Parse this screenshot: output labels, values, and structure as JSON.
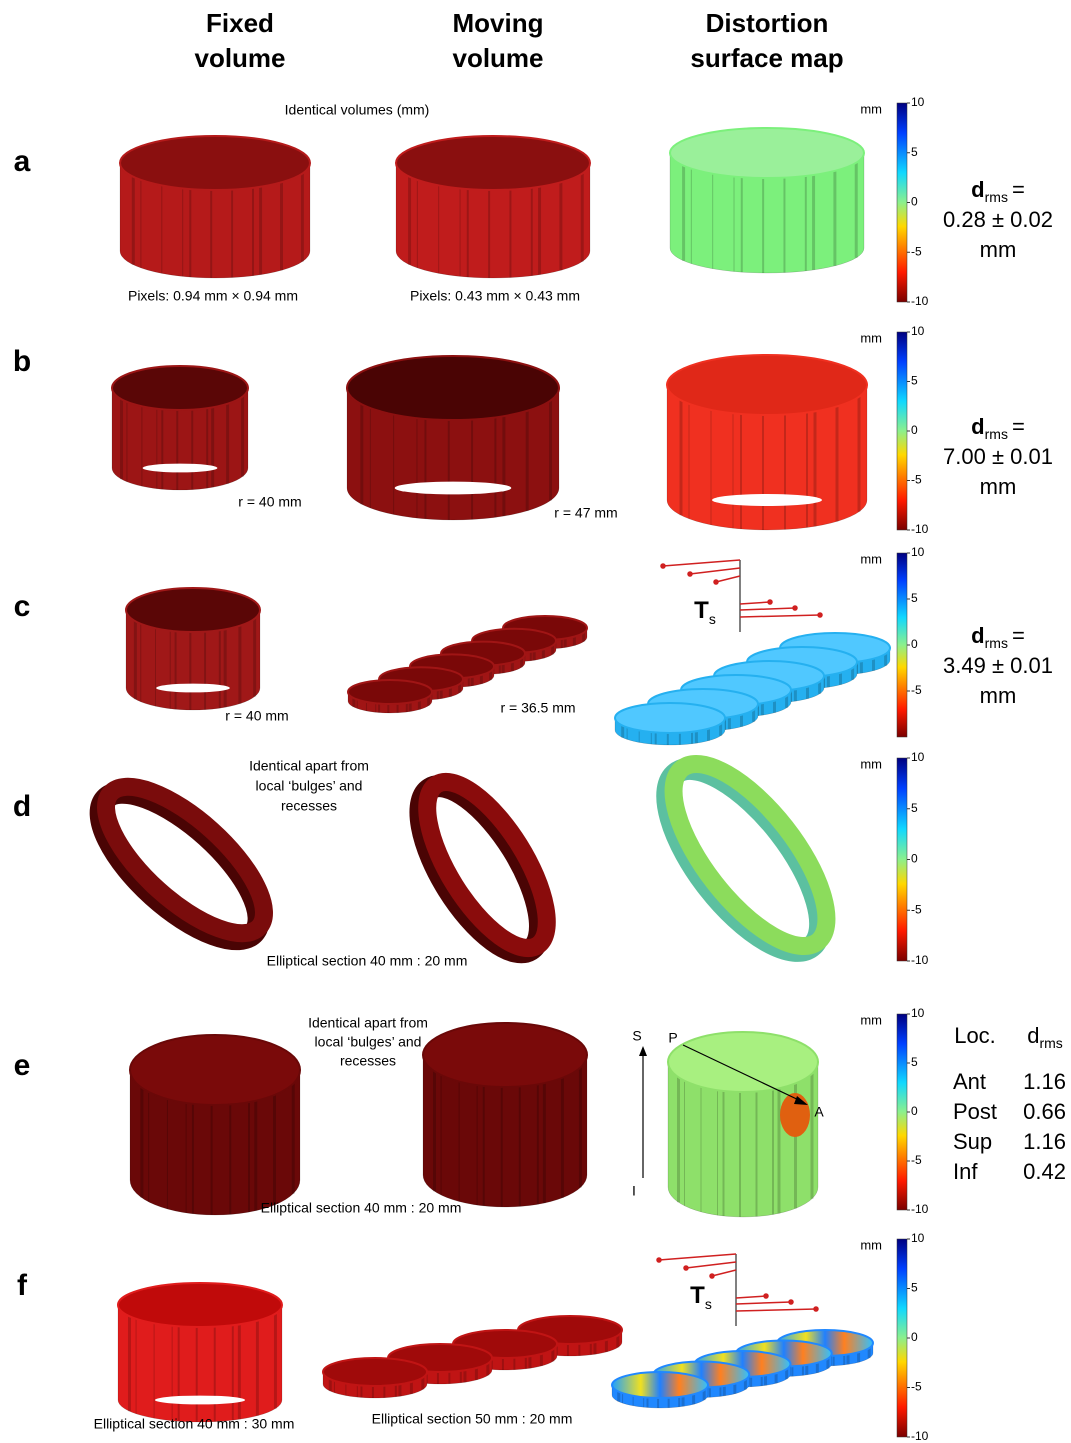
{
  "headers": [
    [
      "Fixed",
      "volume"
    ],
    [
      "Moving",
      "volume"
    ],
    [
      "Distortion",
      "surface map"
    ]
  ],
  "rows": [
    {
      "label": "a",
      "captions": [
        "Identical volumes (mm)",
        "Pixels: 0.94 mm × 0.94 mm",
        "Pixels: 0.43 mm × 0.43 mm"
      ],
      "colorbar": {
        "unit": "mm",
        "clim": [
          -10,
          10
        ],
        "ticks": [
          10,
          5,
          0,
          -5,
          -10
        ]
      },
      "drms": {
        "symbol": "d",
        "sub": "rms",
        "eq": "=",
        "value": "0.28 ± 0.02",
        "unit": "mm"
      }
    },
    {
      "label": "b",
      "captions": [
        "r = 40 mm",
        "r = 47 mm"
      ],
      "colorbar": {
        "unit": "mm",
        "clim": [
          -10,
          10
        ],
        "ticks": [
          10,
          5,
          0,
          -5,
          -10
        ]
      },
      "drms": {
        "symbol": "d",
        "sub": "rms",
        "eq": "=",
        "value": "7.00 ± 0.01",
        "unit": "mm"
      }
    },
    {
      "label": "c",
      "captions": [
        "r = 40 mm",
        "r = 36.5 mm"
      ],
      "ts": {
        "symbol": "T",
        "sub": "s"
      },
      "colorbar": {
        "unit": "mm",
        "clim": [
          -10,
          10
        ],
        "ticks": [
          10,
          5,
          0,
          -5
        ]
      },
      "drms": {
        "symbol": "d",
        "sub": "rms",
        "eq": "=",
        "value": "3.49 ± 0.01",
        "unit": "mm"
      }
    },
    {
      "label": "d",
      "captions": [
        "Identical apart from",
        "local ‘bulges’ and",
        "recesses",
        "Elliptical section 40 mm : 20 mm"
      ],
      "colorbar": {
        "unit": "mm",
        "clim": [
          -10,
          10
        ],
        "ticks": [
          10,
          5,
          0,
          -5,
          -10
        ]
      }
    },
    {
      "label": "e",
      "captions": [
        "Identical apart from",
        "local ‘bulges’ and",
        "recesses",
        "Elliptical section 40 mm : 20 mm"
      ],
      "axis_labels": [
        "S",
        "P",
        "I",
        "A"
      ],
      "colorbar": {
        "unit": "mm",
        "clim": [
          -10,
          10
        ],
        "ticks": [
          10,
          5,
          0,
          -5,
          -10
        ]
      },
      "table": {
        "header": [
          "Loc.",
          {
            "symbol": "d",
            "sub": "rms"
          }
        ],
        "rows": [
          [
            "Ant",
            1.16
          ],
          [
            "Post",
            0.66
          ],
          [
            "Sup",
            1.16
          ],
          [
            "Inf",
            0.42
          ]
        ]
      }
    },
    {
      "label": "f",
      "captions": [
        "Elliptical section 40 mm : 30 mm",
        "Elliptical section 50 mm : 20 mm"
      ],
      "ts": {
        "symbol": "T",
        "sub": "s"
      },
      "colorbar": {
        "unit": "mm",
        "clim": [
          -10,
          10
        ],
        "ticks": [
          10,
          5,
          0,
          -5,
          -10
        ]
      }
    }
  ]
}
